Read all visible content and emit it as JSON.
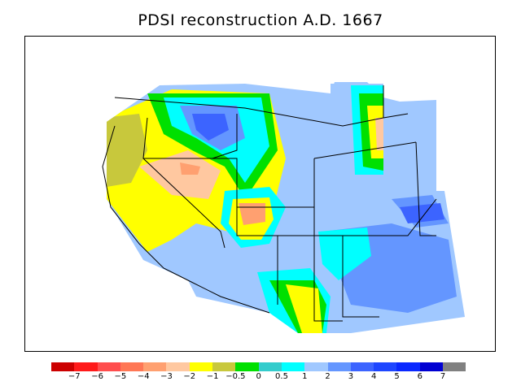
{
  "title": "PDSI reconstruction A.D. 1667",
  "map": {
    "region": "Western United States",
    "background": "#ffffff",
    "border_color": "#000000"
  },
  "colorbar": {
    "colors": [
      "#cc0000",
      "#ff1a1a",
      "#ff4d4d",
      "#ff7755",
      "#ffa070",
      "#ffc8a0",
      "#ffff00",
      "#c8c83c",
      "#00e000",
      "#33cccc",
      "#00ffff",
      "#a0c8ff",
      "#6496ff",
      "#3c64ff",
      "#1e46ff",
      "#0a28ff",
      "#0000d2",
      "#808080"
    ],
    "tick_labels": [
      "−7",
      "−6",
      "−5",
      "−4",
      "−3",
      "−2",
      "−1",
      "−0.5",
      "0",
      "0.5",
      "1",
      "2",
      "3",
      "4",
      "5",
      "6",
      "7"
    ]
  }
}
